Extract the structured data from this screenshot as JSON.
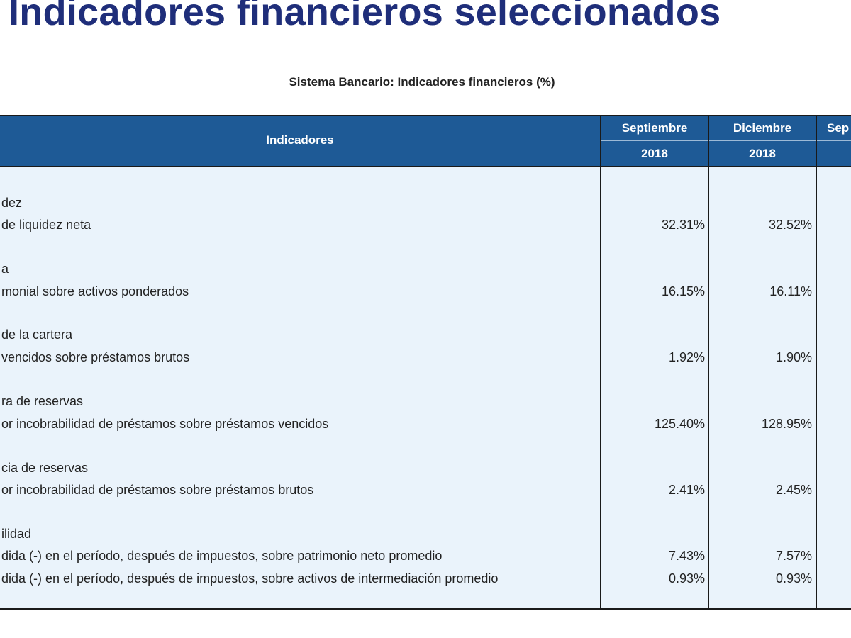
{
  "title": "Indicadores financieros seleccionados",
  "subtitle": "Sistema Bancario: Indicadores  financieros (%)",
  "table": {
    "header": {
      "indicators_label": "Indicadores",
      "columns": [
        {
          "month": "Septiembre",
          "year": "2018"
        },
        {
          "month": "Diciembre",
          "year": "2018"
        },
        {
          "month": "Sep",
          "year": ""
        }
      ]
    },
    "groups": [
      {
        "heading": "dez",
        "rows": [
          {
            "label": "de liquidez neta",
            "values": [
              "32.31%",
              "32.52%"
            ]
          }
        ]
      },
      {
        "heading": "a",
        "rows": [
          {
            "label": "monial sobre activos ponderados",
            "values": [
              "16.15%",
              "16.11%"
            ]
          }
        ]
      },
      {
        "heading": "de la cartera",
        "rows": [
          {
            "label": "vencidos sobre préstamos brutos",
            "values": [
              "1.92%",
              "1.90%"
            ]
          }
        ]
      },
      {
        "heading": "ra de reservas",
        "rows": [
          {
            "label": "or incobrabilidad de préstamos sobre préstamos vencidos",
            "values": [
              "125.40%",
              "128.95%"
            ]
          }
        ]
      },
      {
        "heading": "cia de reservas",
        "rows": [
          {
            "label": "or incobrabilidad de préstamos sobre préstamos brutos",
            "values": [
              "2.41%",
              "2.45%"
            ]
          }
        ]
      },
      {
        "heading": "ilidad",
        "rows": [
          {
            "label": "dida (-) en el período, después de impuestos, sobre patrimonio neto promedio",
            "values": [
              "7.43%",
              "7.57%"
            ]
          },
          {
            "label": "dida (-) en el período, después de impuestos, sobre activos de intermediación promedio",
            "values": [
              "0.93%",
              "0.93%"
            ]
          }
        ]
      }
    ]
  }
}
